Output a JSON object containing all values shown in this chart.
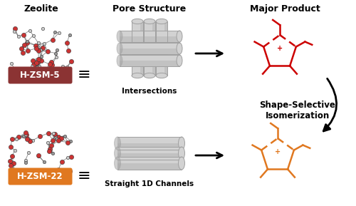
{
  "title_zeolite": "Zeolite",
  "title_pore": "Pore Structure",
  "title_product": "Major Product",
  "label_zsm5": "H-ZSM-5",
  "label_zsm22": "H-ZSM-22",
  "label_intersections": "Intersections",
  "label_channels": "Straight 1D Channels",
  "label_shape": "Shape-Selective",
  "label_iso": "Isomerization",
  "color_zsm5": "#8B3333",
  "color_zsm22": "#E07820",
  "color_red": "#CC0000",
  "color_orange": "#E07820",
  "cyl_face": "#D2D2D2",
  "cyl_edge": "#A0A0A0",
  "bg_color": "#FFFFFF"
}
